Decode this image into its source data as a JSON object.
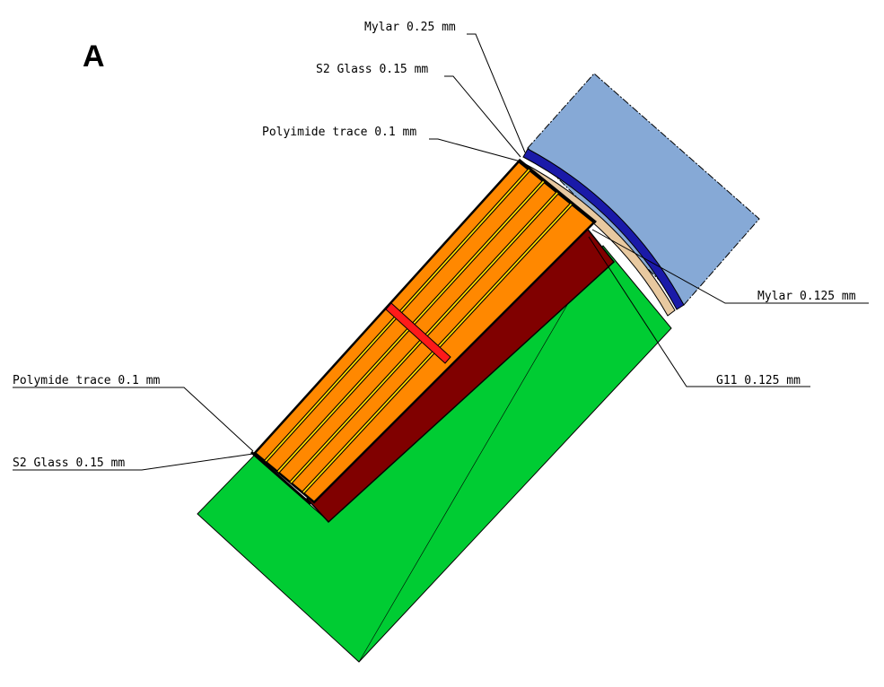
{
  "panel_label": "A",
  "labels": {
    "mylar_025": "Mylar 0.25 mm",
    "s2_glass_top": "S2 Glass 0.15 mm",
    "polyimide_top": "Polyimide trace 0.1 mm",
    "mylar_0125": "Mylar 0.125 mm",
    "g11": "G11 0.125 mm",
    "polymide_bottom": "Polymide trace 0.1 mm",
    "s2_glass_bottom": "S2 Glass 0.15 mm"
  },
  "colors": {
    "green_body": "#00cc33",
    "blue_region": "#86a9d6",
    "dark_blue_layer": "#1a1aa8",
    "orange_bars": "#ff8800",
    "yellow_traces": "#ffdd00",
    "dark_red_block": "#800000",
    "red_strip": "#ff1a1a",
    "tan_layer": "#e8c9a0"
  }
}
